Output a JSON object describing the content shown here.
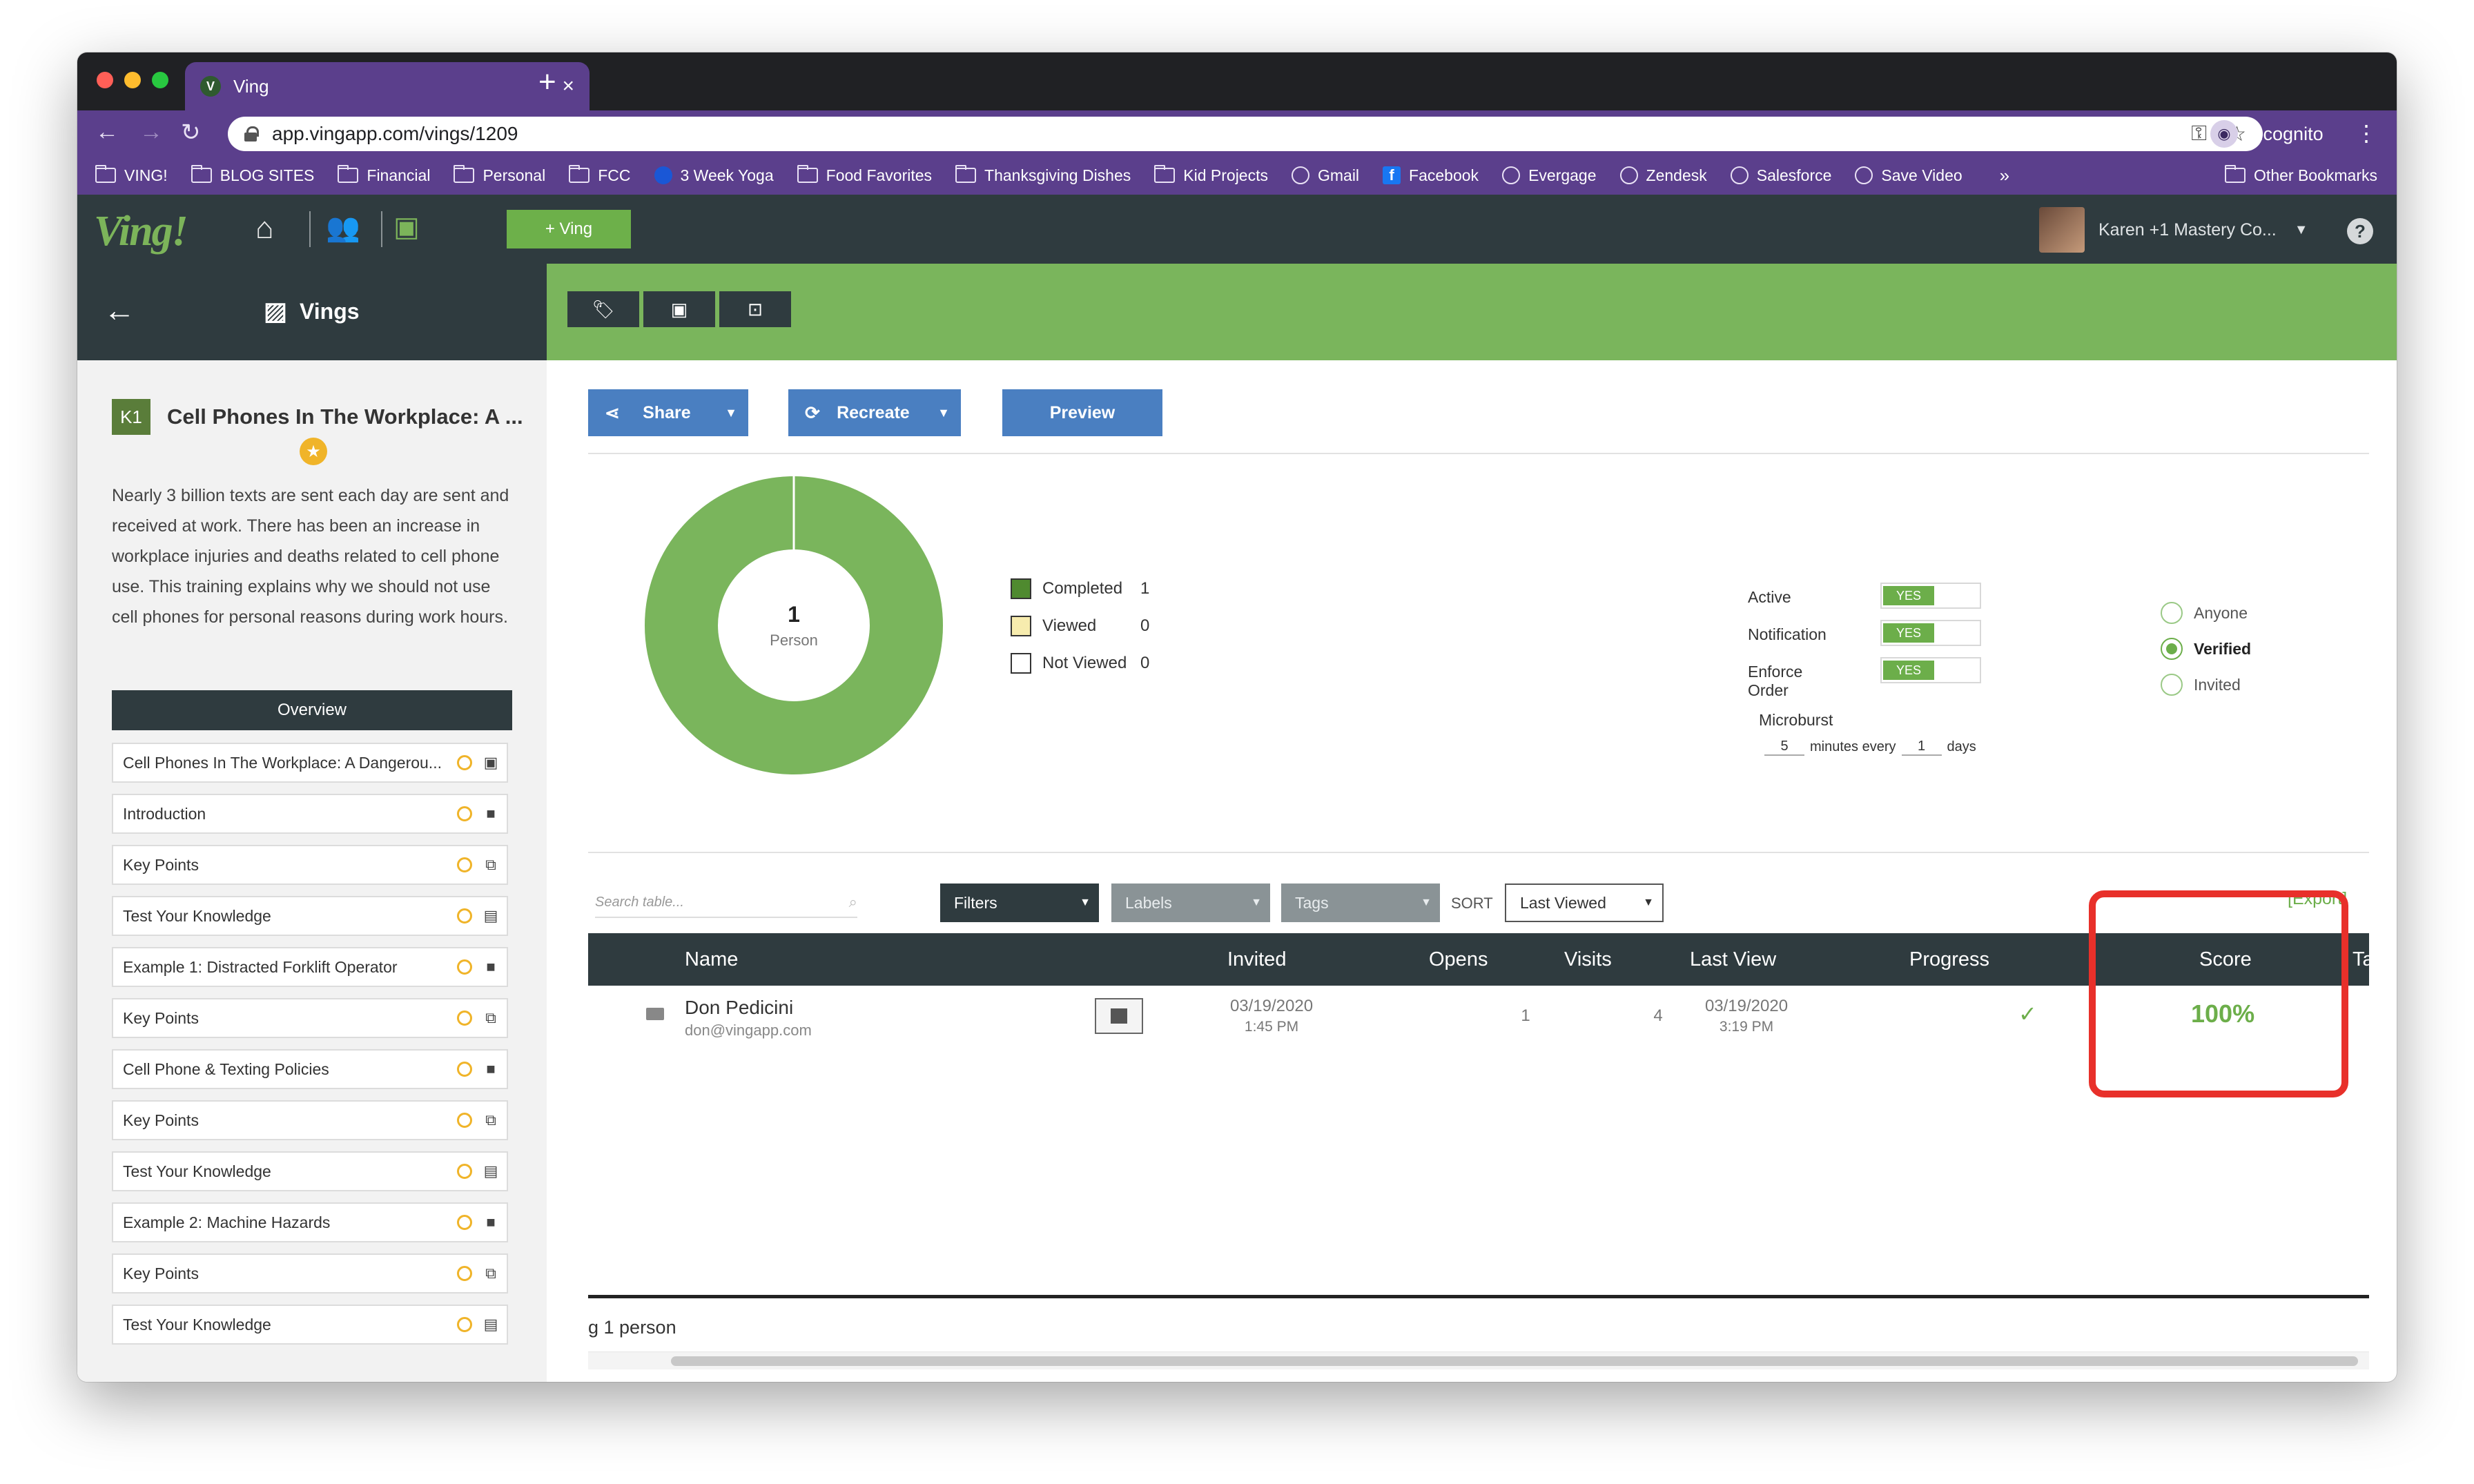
{
  "browser": {
    "tab_title": "Ving",
    "tab_favicon": "V",
    "url": "app.vingapp.com/vings/1209",
    "profile_label": "Incognito",
    "bookmarks": [
      {
        "label": "VING!",
        "icon": "folder"
      },
      {
        "label": "BLOG SITES",
        "icon": "folder"
      },
      {
        "label": "Financial",
        "icon": "folder"
      },
      {
        "label": "Personal",
        "icon": "folder"
      },
      {
        "label": "FCC",
        "icon": "folder"
      },
      {
        "label": "3 Week Yoga",
        "icon": "globe-blue"
      },
      {
        "label": "Food Favorites",
        "icon": "folder"
      },
      {
        "label": "Thanksgiving Dishes",
        "icon": "folder"
      },
      {
        "label": "Kid Projects",
        "icon": "folder"
      },
      {
        "label": "Gmail",
        "icon": "globe"
      },
      {
        "label": "Facebook",
        "icon": "facebook"
      },
      {
        "label": "Evergage",
        "icon": "globe"
      },
      {
        "label": "Zendesk",
        "icon": "globe"
      },
      {
        "label": "Salesforce",
        "icon": "globe"
      },
      {
        "label": "Save Video",
        "icon": "globe"
      }
    ],
    "more_bookmarks": "»",
    "other_bookmarks": "Other Bookmarks"
  },
  "app": {
    "logo": "Ving!",
    "add_button": "+ Ving",
    "account_name": "Karen +1 Mastery Co...",
    "help": "?",
    "section_title": "Vings",
    "colors": {
      "brand_green": "#7ab55c",
      "dark": "#2f3b3f",
      "button_blue": "#4a7fc1",
      "highlight_red": "#e8302a"
    }
  },
  "course": {
    "badge": "K1",
    "title": "Cell Phones In The Workplace: A ...",
    "description": "Nearly 3 billion texts are sent each day are sent and received at work. There has been an increase in workplace injuries and deaths related to cell phone use. This training explains why we should not use cell phones for personal reasons during work hours.",
    "overview_label": "Overview",
    "slides": [
      {
        "name": "Cell Phones In The Workplace: A Dangerou...",
        "type_icon": "image-icon"
      },
      {
        "name": "Introduction",
        "type_icon": "video-icon"
      },
      {
        "name": "Key Points",
        "type_icon": "copy-icon"
      },
      {
        "name": "Test Your Knowledge",
        "type_icon": "clipboard-icon"
      },
      {
        "name": "Example 1: Distracted Forklift Operator",
        "type_icon": "video-icon"
      },
      {
        "name": "Key Points",
        "type_icon": "copy-icon"
      },
      {
        "name": "Cell Phone & Texting Policies",
        "type_icon": "video-icon"
      },
      {
        "name": "Key Points",
        "type_icon": "copy-icon"
      },
      {
        "name": "Test Your Knowledge",
        "type_icon": "clipboard-icon"
      },
      {
        "name": "Example 2: Machine Hazards",
        "type_icon": "video-icon"
      },
      {
        "name": "Key Points",
        "type_icon": "copy-icon"
      },
      {
        "name": "Test Your Knowledge",
        "type_icon": "clipboard-icon"
      }
    ]
  },
  "actions": {
    "share": "Share",
    "recreate": "Recreate",
    "preview": "Preview"
  },
  "summary": {
    "donut_count": "1",
    "donut_label": "Person",
    "completed_fraction": 1.0,
    "legend": [
      {
        "label": "Completed",
        "value": "1",
        "color": "#4f8a2f"
      },
      {
        "label": "Viewed",
        "value": "0",
        "color": "#f7ecae"
      },
      {
        "label": "Not Viewed",
        "value": "0",
        "color": "#ffffff"
      }
    ]
  },
  "settings": {
    "toggles": [
      {
        "label": "Active",
        "value": "YES"
      },
      {
        "label": "Notification",
        "value": "YES"
      },
      {
        "label": "Enforce Order",
        "value": "YES"
      }
    ],
    "microburst_label": "Microburst",
    "microburst_minutes": "5",
    "microburst_mid": "minutes every",
    "microburst_days": "1",
    "microburst_unit": "days",
    "visibility": [
      {
        "label": "Anyone",
        "selected": false
      },
      {
        "label": "Verified",
        "selected": true
      },
      {
        "label": "Invited",
        "selected": false
      }
    ]
  },
  "table": {
    "search_placeholder": "Search table...",
    "filters": "Filters",
    "labels": "Labels",
    "tags": "Tags",
    "sort_label": "SORT",
    "sort_value": "Last Viewed",
    "export": "[Export]",
    "headers": {
      "name": "Name",
      "invited": "Invited",
      "opens": "Opens",
      "visits": "Visits",
      "last_view": "Last View",
      "progress": "Progress",
      "score": "Score",
      "tag": "Tag"
    },
    "rows": [
      {
        "name": "Don Pedicini",
        "email": "don@vingapp.com",
        "invited_date": "03/19/2020",
        "invited_time": "1:45 PM",
        "opens": "1",
        "visits": "4",
        "last_view_date": "03/19/2020",
        "last_view_time": "3:19 PM",
        "progress": "✓",
        "score": "100%"
      }
    ],
    "footer": "g 1 person"
  }
}
